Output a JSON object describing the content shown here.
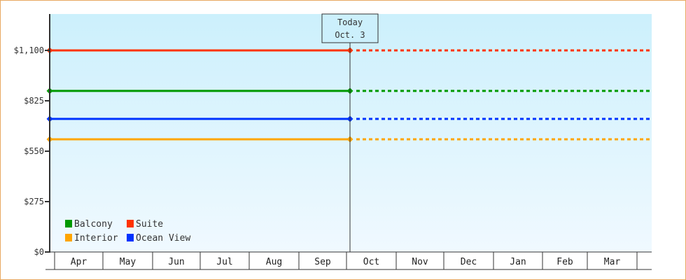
{
  "chart_data": {
    "type": "line",
    "title": "",
    "xlabel": "",
    "ylabel": "",
    "ylim": [
      0,
      1237.5
    ],
    "y_ticks": [
      "$0",
      "$275",
      "$550",
      "$825",
      "$1,100"
    ],
    "y_tick_values": [
      0,
      275,
      550,
      825,
      1100
    ],
    "categories": [
      "Apr",
      "May",
      "Jun",
      "Jul",
      "Aug",
      "Sep",
      "Oct",
      "Nov",
      "Dec",
      "Jan",
      "Feb",
      "Mar"
    ],
    "grid": false,
    "legend_placement": "bottom-left",
    "today_marker": {
      "line1": "Today",
      "line2": "Oct. 3"
    },
    "series": [
      {
        "name": "Balcony",
        "color": "#009900",
        "value": 879,
        "start": "Apr",
        "end": "Oct. 3",
        "projection": "dashed to Mar"
      },
      {
        "name": "Suite",
        "color": "#ff3300",
        "value": 1100,
        "start": "Apr",
        "end": "Oct. 3",
        "projection": "dashed to Mar"
      },
      {
        "name": "Interior",
        "color": "#ffa500",
        "value": 615,
        "start": "Apr",
        "end": "Oct. 3",
        "projection": "dashed to Mar"
      },
      {
        "name": "Ocean View",
        "color": "#0033ff",
        "value": 726,
        "start": "Apr",
        "end": "Oct. 3",
        "projection": "dashed to Mar"
      }
    ],
    "background_gradient": [
      "#ccf0fc",
      "#f0f9ff"
    ]
  }
}
